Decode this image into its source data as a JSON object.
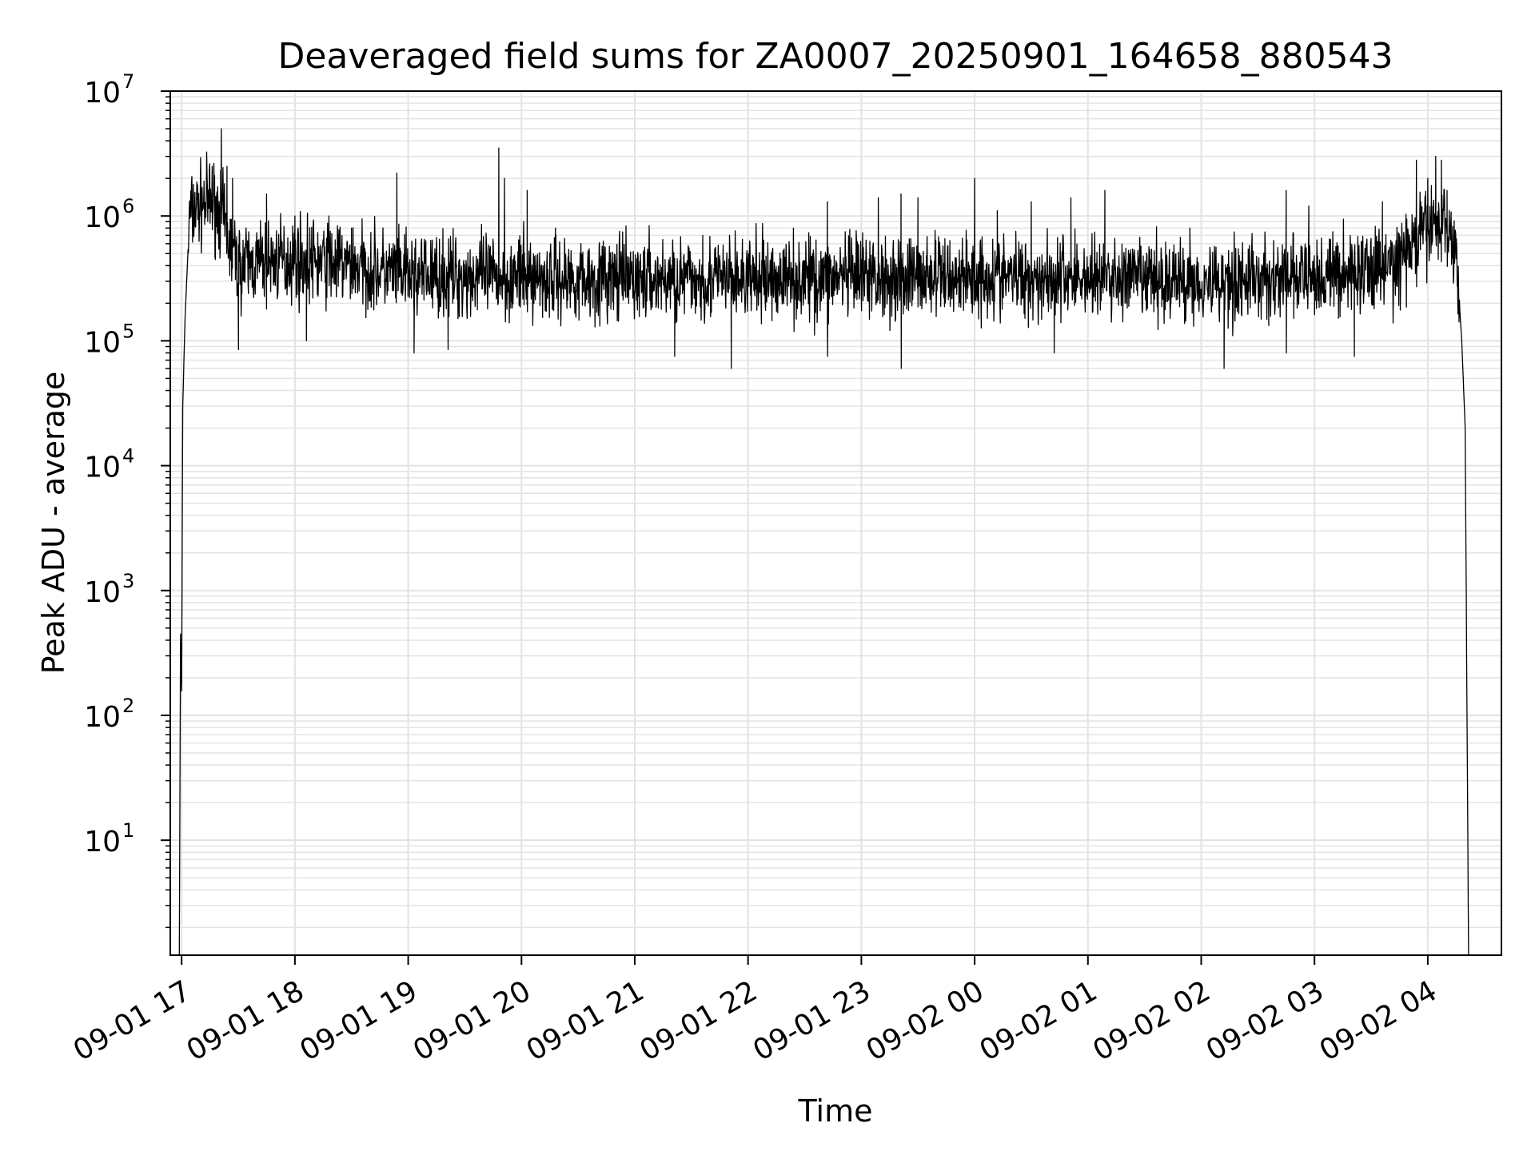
{
  "chart_data": {
    "type": "line",
    "title": "Deaveraged field sums for ZA0007_20250901_164658_880543",
    "xlabel": "Time",
    "ylabel": "Peak ADU - average",
    "yscale": "log",
    "ylim": [
      1.2,
      10000000
    ],
    "xlim_hours": [
      -0.1,
      11.65
    ],
    "grid": true,
    "legend": "none",
    "series_color": "#000000",
    "x_ticks": [
      {
        "label": "09-01 17",
        "hour": 0
      },
      {
        "label": "09-01 18",
        "hour": 1
      },
      {
        "label": "09-01 19",
        "hour": 2
      },
      {
        "label": "09-01 20",
        "hour": 3
      },
      {
        "label": "09-01 21",
        "hour": 4
      },
      {
        "label": "09-01 22",
        "hour": 5
      },
      {
        "label": "09-01 23",
        "hour": 6
      },
      {
        "label": "09-02 00",
        "hour": 7
      },
      {
        "label": "09-02 01",
        "hour": 8
      },
      {
        "label": "09-02 02",
        "hour": 9
      },
      {
        "label": "09-02 03",
        "hour": 10
      },
      {
        "label": "09-02 04",
        "hour": 11
      }
    ],
    "y_ticks": [
      {
        "base": "10",
        "exp": "1",
        "value": 10
      },
      {
        "base": "10",
        "exp": "2",
        "value": 100
      },
      {
        "base": "10",
        "exp": "3",
        "value": 1000
      },
      {
        "base": "10",
        "exp": "4",
        "value": 10000
      },
      {
        "base": "10",
        "exp": "5",
        "value": 100000
      },
      {
        "base": "10",
        "exp": "6",
        "value": 1000000
      },
      {
        "base": "10",
        "exp": "7",
        "value": 10000000
      }
    ],
    "series": [
      {
        "name": "Peak ADU - average",
        "baseline_points": [
          [
            -0.02,
            1.2
          ],
          [
            -0.01,
            450
          ],
          [
            0.0,
            150
          ],
          [
            0.01,
            30000
          ],
          [
            0.03,
            150000
          ],
          [
            0.07,
            1000000
          ],
          [
            0.15,
            1200000
          ],
          [
            0.25,
            1300000
          ],
          [
            0.35,
            1100000
          ],
          [
            0.42,
            600000
          ],
          [
            0.5,
            400000
          ],
          [
            1.0,
            450000
          ],
          [
            1.5,
            400000
          ],
          [
            2.0,
            330000
          ],
          [
            2.5,
            330000
          ],
          [
            3.0,
            320000
          ],
          [
            4.0,
            310000
          ],
          [
            5.0,
            310000
          ],
          [
            6.0,
            320000
          ],
          [
            7.0,
            330000
          ],
          [
            8.0,
            320000
          ],
          [
            9.0,
            300000
          ],
          [
            10.0,
            320000
          ],
          [
            10.7,
            400000
          ],
          [
            10.85,
            550000
          ],
          [
            11.0,
            800000
          ],
          [
            11.15,
            900000
          ],
          [
            11.25,
            500000
          ],
          [
            11.3,
            100000
          ],
          [
            11.33,
            20000
          ],
          [
            11.36,
            1.2
          ]
        ],
        "spikes": [
          [
            0.35,
            5000000
          ],
          [
            0.27,
            2500000
          ],
          [
            0.4,
            2500000
          ],
          [
            0.45,
            2000000
          ],
          [
            0.75,
            1500000
          ],
          [
            1.0,
            1000000
          ],
          [
            1.3,
            1000000
          ],
          [
            1.5,
            800000
          ],
          [
            1.9,
            2200000
          ],
          [
            2.8,
            3500000
          ],
          [
            2.85,
            2000000
          ],
          [
            3.05,
            1600000
          ],
          [
            3.3,
            800000
          ],
          [
            4.6,
            700000
          ],
          [
            5.4,
            800000
          ],
          [
            5.7,
            1300000
          ],
          [
            6.15,
            1400000
          ],
          [
            6.35,
            1500000
          ],
          [
            6.5,
            1400000
          ],
          [
            7.0,
            2000000
          ],
          [
            7.2,
            1100000
          ],
          [
            7.5,
            1300000
          ],
          [
            7.85,
            1400000
          ],
          [
            8.15,
            1600000
          ],
          [
            8.9,
            800000
          ],
          [
            9.75,
            1600000
          ],
          [
            9.95,
            1200000
          ],
          [
            10.6,
            1300000
          ],
          [
            10.9,
            2800000
          ],
          [
            11.0,
            2000000
          ],
          [
            11.07,
            3000000
          ],
          [
            11.12,
            2800000
          ],
          [
            11.17,
            1600000
          ]
        ],
        "dips": [
          [
            0.5,
            85000
          ],
          [
            1.1,
            100000
          ],
          [
            2.05,
            80000
          ],
          [
            2.35,
            85000
          ],
          [
            4.35,
            75000
          ],
          [
            4.85,
            60000
          ],
          [
            5.7,
            75000
          ],
          [
            6.35,
            60000
          ],
          [
            7.7,
            80000
          ],
          [
            9.2,
            60000
          ],
          [
            9.75,
            80000
          ],
          [
            10.35,
            75000
          ]
        ]
      }
    ]
  }
}
